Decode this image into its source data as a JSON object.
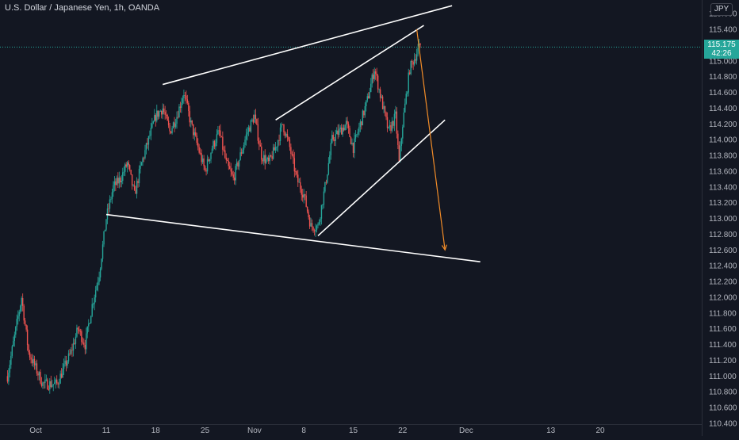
{
  "header": {
    "title": "U.S. Dollar / Japanese Yen, 1h, OANDA",
    "currency_badge": "JPY"
  },
  "price_tag": {
    "price": "115.175",
    "countdown": "42:26"
  },
  "colors": {
    "background": "#131722",
    "up": "#26a69a",
    "down": "#ef5350",
    "trendline": "#ffffff",
    "projection_arrow": "#f28c28",
    "axis_text": "#b2b5be"
  },
  "chart_data": {
    "type": "candlestick",
    "symbol": "USDJPY",
    "timeframe": "1h",
    "ylim": [
      110.4,
      115.8
    ],
    "y_ticks": [
      "110.400",
      "110.600",
      "110.800",
      "111.000",
      "111.200",
      "111.400",
      "111.600",
      "111.800",
      "112.000",
      "112.200",
      "112.400",
      "112.600",
      "112.800",
      "113.000",
      "113.200",
      "113.400",
      "113.600",
      "113.800",
      "114.000",
      "114.200",
      "114.400",
      "114.600",
      "114.800",
      "115.000",
      "115.200",
      "115.400",
      "115.600"
    ],
    "x_ticks": [
      {
        "label": "Oct",
        "date": "2021-10-01"
      },
      {
        "label": "11",
        "date": "2021-10-11"
      },
      {
        "label": "18",
        "date": "2021-10-18"
      },
      {
        "label": "25",
        "date": "2021-10-25"
      },
      {
        "label": "Nov",
        "date": "2021-11-01"
      },
      {
        "label": "8",
        "date": "2021-11-08"
      },
      {
        "label": "15",
        "date": "2021-11-15"
      },
      {
        "label": "22",
        "date": "2021-11-22"
      },
      {
        "label": "Dec",
        "date": "2021-12-01"
      },
      {
        "label": "13",
        "date": "2021-12-13"
      },
      {
        "label": "20",
        "date": "2021-12-20"
      }
    ],
    "price_path": [
      {
        "date": "2021-09-27",
        "price": 111.0
      },
      {
        "date": "2021-09-28",
        "price": 111.5
      },
      {
        "date": "2021-09-29",
        "price": 112.0
      },
      {
        "date": "2021-09-30",
        "price": 111.3
      },
      {
        "date": "2021-10-01",
        "price": 111.1
      },
      {
        "date": "2021-10-02",
        "price": 110.9
      },
      {
        "date": "2021-10-04",
        "price": 110.9
      },
      {
        "date": "2021-10-06",
        "price": 111.3
      },
      {
        "date": "2021-10-07",
        "price": 111.6
      },
      {
        "date": "2021-10-08",
        "price": 111.4
      },
      {
        "date": "2021-10-09",
        "price": 111.9
      },
      {
        "date": "2021-10-10",
        "price": 112.3
      },
      {
        "date": "2021-10-11",
        "price": 113.0
      },
      {
        "date": "2021-10-12",
        "price": 113.4
      },
      {
        "date": "2021-10-13",
        "price": 113.5
      },
      {
        "date": "2021-10-14",
        "price": 113.7
      },
      {
        "date": "2021-10-15",
        "price": 113.3
      },
      {
        "date": "2021-10-16",
        "price": 113.7
      },
      {
        "date": "2021-10-17",
        "price": 114.0
      },
      {
        "date": "2021-10-18",
        "price": 114.3
      },
      {
        "date": "2021-10-19",
        "price": 114.4
      },
      {
        "date": "2021-10-20",
        "price": 114.1
      },
      {
        "date": "2021-10-21",
        "price": 114.3
      },
      {
        "date": "2021-10-22",
        "price": 114.6
      },
      {
        "date": "2021-10-23",
        "price": 114.2
      },
      {
        "date": "2021-10-24",
        "price": 113.9
      },
      {
        "date": "2021-10-25",
        "price": 113.6
      },
      {
        "date": "2021-10-26",
        "price": 113.9
      },
      {
        "date": "2021-10-27",
        "price": 114.1
      },
      {
        "date": "2021-10-28",
        "price": 113.7
      },
      {
        "date": "2021-10-29",
        "price": 113.5
      },
      {
        "date": "2021-10-30",
        "price": 113.8
      },
      {
        "date": "2021-10-31",
        "price": 114.1
      },
      {
        "date": "2021-11-01",
        "price": 114.3
      },
      {
        "date": "2021-11-02",
        "price": 113.8
      },
      {
        "date": "2021-11-03",
        "price": 113.7
      },
      {
        "date": "2021-11-04",
        "price": 113.9
      },
      {
        "date": "2021-11-05",
        "price": 114.2
      },
      {
        "date": "2021-11-06",
        "price": 113.9
      },
      {
        "date": "2021-11-07",
        "price": 113.5
      },
      {
        "date": "2021-11-08",
        "price": 113.3
      },
      {
        "date": "2021-11-09",
        "price": 112.9
      },
      {
        "date": "2021-11-10",
        "price": 112.9
      },
      {
        "date": "2021-11-11",
        "price": 113.4
      },
      {
        "date": "2021-11-12",
        "price": 114.0
      },
      {
        "date": "2021-11-13",
        "price": 114.1
      },
      {
        "date": "2021-11-14",
        "price": 114.2
      },
      {
        "date": "2021-11-15",
        "price": 113.9
      },
      {
        "date": "2021-11-16",
        "price": 114.2
      },
      {
        "date": "2021-11-17",
        "price": 114.5
      },
      {
        "date": "2021-11-18",
        "price": 114.9
      },
      {
        "date": "2021-11-19",
        "price": 114.5
      },
      {
        "date": "2021-11-20",
        "price": 114.1
      },
      {
        "date": "2021-11-21",
        "price": 114.3
      },
      {
        "date": "2021-11-21T12:00",
        "price": 113.7
      },
      {
        "date": "2021-11-22",
        "price": 114.2
      },
      {
        "date": "2021-11-23",
        "price": 114.9
      },
      {
        "date": "2021-11-24",
        "price": 115.1
      },
      {
        "date": "2021-11-24T12:00",
        "price": 115.2
      }
    ],
    "drawings": [
      {
        "name": "upper-wedge-line",
        "from": {
          "date": "2021-10-19",
          "price": 114.7
        },
        "to": {
          "date": "2021-11-29",
          "price": 115.7
        }
      },
      {
        "name": "inner-upper-line",
        "from": {
          "date": "2021-11-04",
          "price": 114.25
        },
        "to": {
          "date": "2021-11-25",
          "price": 115.45
        }
      },
      {
        "name": "rising-support-line",
        "from": {
          "date": "2021-11-10",
          "price": 112.78
        },
        "to": {
          "date": "2021-11-28",
          "price": 114.25
        }
      },
      {
        "name": "lower-wedge-line",
        "from": {
          "date": "2021-10-11",
          "price": 113.05
        },
        "to": {
          "date": "2021-12-03",
          "price": 112.45
        }
      }
    ],
    "projection": {
      "from": {
        "date": "2021-11-24",
        "price": 115.4
      },
      "to": {
        "date": "2021-11-28",
        "price": 112.6
      }
    }
  }
}
